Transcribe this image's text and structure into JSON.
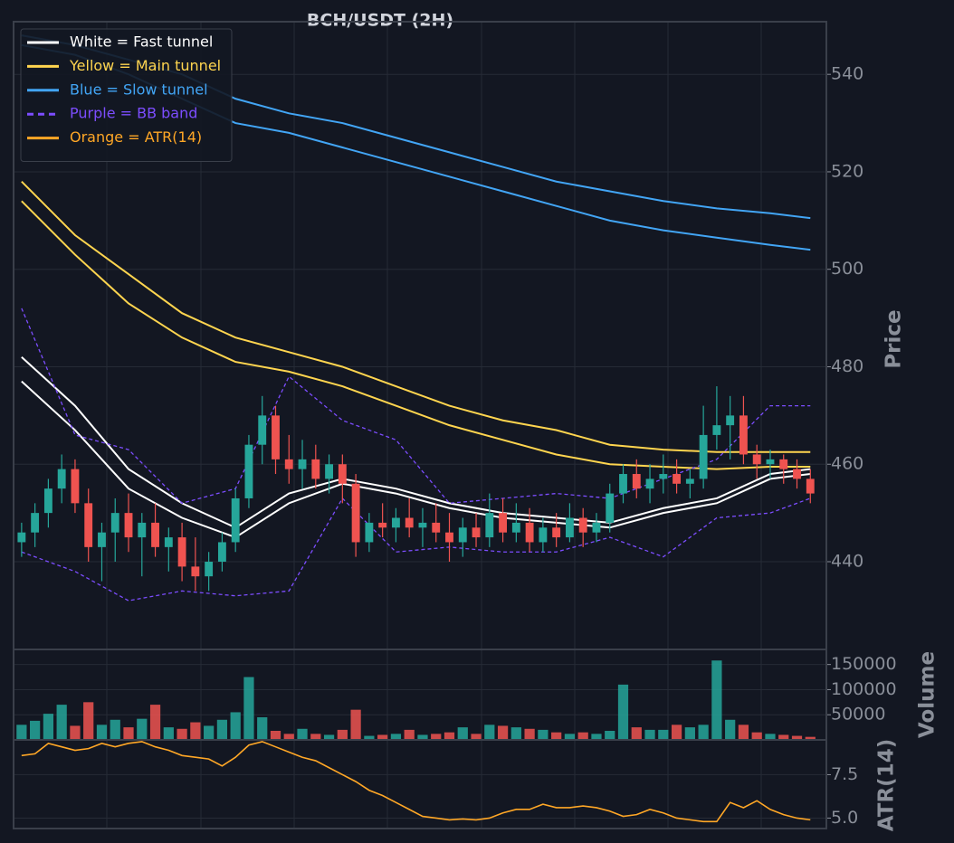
{
  "chart_data": [
    {
      "type": "candlestick",
      "title": "BCH/USDT (2H)",
      "ylabel": "Price",
      "x": [
        0,
        1,
        2,
        3,
        4,
        5,
        6,
        7,
        8,
        9,
        10,
        11,
        12,
        13,
        14,
        15,
        16,
        17,
        18,
        19,
        20,
        21,
        22,
        23,
        24,
        25,
        26,
        27,
        28,
        29,
        30,
        31,
        32,
        33,
        34,
        35,
        36,
        37,
        38,
        39,
        40,
        41,
        42,
        43,
        44,
        45,
        46,
        47,
        48,
        49,
        50,
        51,
        52,
        53,
        54,
        55,
        56,
        57,
        58,
        59
      ],
      "xlim": [
        -0.6,
        60.2
      ],
      "open": [
        444,
        446,
        450,
        455,
        459,
        452,
        443,
        446,
        450,
        445,
        448,
        443,
        445,
        439,
        437,
        440,
        444,
        453,
        464,
        470,
        461,
        459,
        461,
        457,
        460,
        456,
        444,
        448,
        447,
        449,
        447,
        448,
        446,
        444,
        447,
        445,
        450,
        446,
        448,
        444,
        447,
        445,
        449,
        446,
        448,
        454,
        458,
        455,
        457,
        458,
        456,
        457,
        466,
        468,
        470,
        462,
        460,
        461,
        459,
        457
      ],
      "high": [
        448,
        452,
        457,
        462,
        461,
        455,
        448,
        453,
        454,
        450,
        452,
        447,
        448,
        445,
        442,
        446,
        455,
        466,
        474,
        472,
        466,
        465,
        464,
        462,
        462,
        458,
        450,
        452,
        451,
        453,
        451,
        452,
        450,
        449,
        450,
        454,
        453,
        452,
        451,
        449,
        450,
        452,
        451,
        450,
        456,
        460,
        461,
        460,
        462,
        461,
        459,
        472,
        476,
        474,
        474,
        464,
        463,
        462,
        461,
        459
      ],
      "low": [
        441,
        443,
        447,
        452,
        450,
        440,
        436,
        440,
        442,
        437,
        441,
        438,
        436,
        434,
        434,
        438,
        442,
        451,
        460,
        458,
        456,
        455,
        455,
        454,
        452,
        441,
        442,
        445,
        444,
        445,
        443,
        444,
        440,
        441,
        443,
        443,
        444,
        444,
        442,
        442,
        443,
        444,
        443,
        444,
        446,
        452,
        453,
        452,
        454,
        454,
        453,
        455,
        463,
        461,
        460,
        457,
        457,
        456,
        455,
        452
      ],
      "close": [
        446,
        450,
        455,
        459,
        452,
        443,
        446,
        450,
        445,
        448,
        443,
        445,
        439,
        437,
        440,
        444,
        453,
        464,
        470,
        461,
        459,
        461,
        457,
        460,
        456,
        444,
        448,
        447,
        449,
        447,
        448,
        446,
        444,
        447,
        445,
        450,
        446,
        448,
        444,
        447,
        445,
        449,
        446,
        448,
        454,
        458,
        455,
        457,
        458,
        456,
        457,
        466,
        468,
        470,
        462,
        460,
        461,
        459,
        457,
        454
      ],
      "up_color": "#26a69a",
      "down_color": "#ef5350",
      "ylim": [
        422,
        550.8
      ],
      "yticks": [
        440,
        460,
        480,
        500,
        520,
        540
      ],
      "grid": true,
      "line_x": [
        0,
        4,
        8,
        12,
        16,
        20,
        24,
        28,
        32,
        36,
        40,
        44,
        48,
        52,
        56,
        59
      ],
      "overlays": [
        {
          "name": "White = Fast tunnel",
          "color": "#ffffff",
          "dashed": false,
          "lines": [
            [
              482,
              472,
              459,
              452,
              447,
              454,
              457,
              455,
              452,
              450,
              449,
              448,
              451,
              453,
              458,
              459
            ],
            [
              477,
              467,
              455,
              449,
              445,
              452,
              456,
              454,
              451,
              449,
              448,
              447,
              450,
              452,
              457,
              458
            ]
          ]
        },
        {
          "name": "Yellow = Main tunnel",
          "color": "#ffd54f",
          "dashed": false,
          "lines": [
            [
              518,
              507,
              499,
              491,
              486,
              483,
              480,
              476,
              472,
              469,
              467,
              464,
              463,
              462.5,
              462.5,
              462.5
            ],
            [
              514,
              503,
              493,
              486,
              481,
              479,
              476,
              472,
              468,
              465,
              462,
              460,
              459.5,
              459,
              459.5,
              459.5
            ]
          ]
        },
        {
          "name": "Blue = Slow tunnel",
          "color": "#42a5f5",
          "dashed": false,
          "lines": [
            [
              548,
              546,
              543,
              540,
              535,
              532,
              530,
              527,
              524,
              521,
              518,
              516,
              514,
              512.5,
              511.5,
              510.5
            ],
            [
              546,
              544,
              540,
              535,
              530,
              528,
              525,
              522,
              519,
              516,
              513,
              510,
              508,
              506.5,
              505,
              504
            ]
          ]
        },
        {
          "name": "Purple = BB band",
          "color": "#7c4dff",
          "dashed": true,
          "lines": [
            [
              492,
              466,
              463,
              452,
              455,
              478,
              469,
              465,
              452,
              453,
              454,
              453,
              457,
              461,
              472,
              472
            ],
            [
              442,
              438,
              432,
              434,
              433,
              434,
              453,
              442,
              443,
              442,
              442,
              445,
              441,
              449,
              450,
              453
            ]
          ]
        }
      ],
      "legend_corner": "upper left"
    },
    {
      "type": "bar",
      "ylabel": "Volume",
      "values": [
        30000,
        38000,
        52000,
        70000,
        28000,
        75000,
        30000,
        40000,
        25000,
        42000,
        70000,
        25000,
        22000,
        35000,
        28000,
        40000,
        55000,
        125000,
        45000,
        18000,
        12000,
        22000,
        12000,
        10000,
        20000,
        60000,
        8000,
        10000,
        12000,
        20000,
        10000,
        12000,
        15000,
        25000,
        12000,
        30000,
        28000,
        25000,
        22000,
        20000,
        15000,
        12000,
        15000,
        12000,
        18000,
        110000,
        25000,
        20000,
        20000,
        30000,
        25000,
        30000,
        158000,
        40000,
        30000,
        15000,
        12000,
        10000,
        8000,
        6000
      ],
      "ylim": [
        0,
        180000
      ],
      "yticks": [
        50000,
        100000,
        150000
      ],
      "grid": true
    },
    {
      "type": "line",
      "ylabel": "ATR(14)",
      "name": "Orange = ATR(14)",
      "color": "#ffa726",
      "values": [
        8.6,
        8.7,
        9.3,
        9.1,
        8.9,
        9.0,
        9.3,
        9.1,
        9.3,
        9.4,
        9.1,
        8.9,
        8.6,
        8.5,
        8.4,
        8.0,
        8.5,
        9.2,
        9.4,
        9.1,
        8.8,
        8.5,
        8.3,
        7.9,
        7.5,
        7.1,
        6.6,
        6.3,
        5.9,
        5.5,
        5.1,
        5.0,
        4.9,
        4.95,
        4.9,
        5.0,
        5.3,
        5.5,
        5.5,
        5.8,
        5.6,
        5.6,
        5.7,
        5.6,
        5.4,
        5.1,
        5.2,
        5.5,
        5.3,
        5.0,
        4.9,
        4.8,
        4.8,
        5.9,
        5.6,
        6.0,
        5.5,
        5.2,
        5.0,
        4.9
      ],
      "ylim": [
        4.4,
        9.5
      ],
      "yticks": [
        {
          "value": 5,
          "label": "5.0"
        },
        7.5
      ],
      "grid": true
    }
  ]
}
